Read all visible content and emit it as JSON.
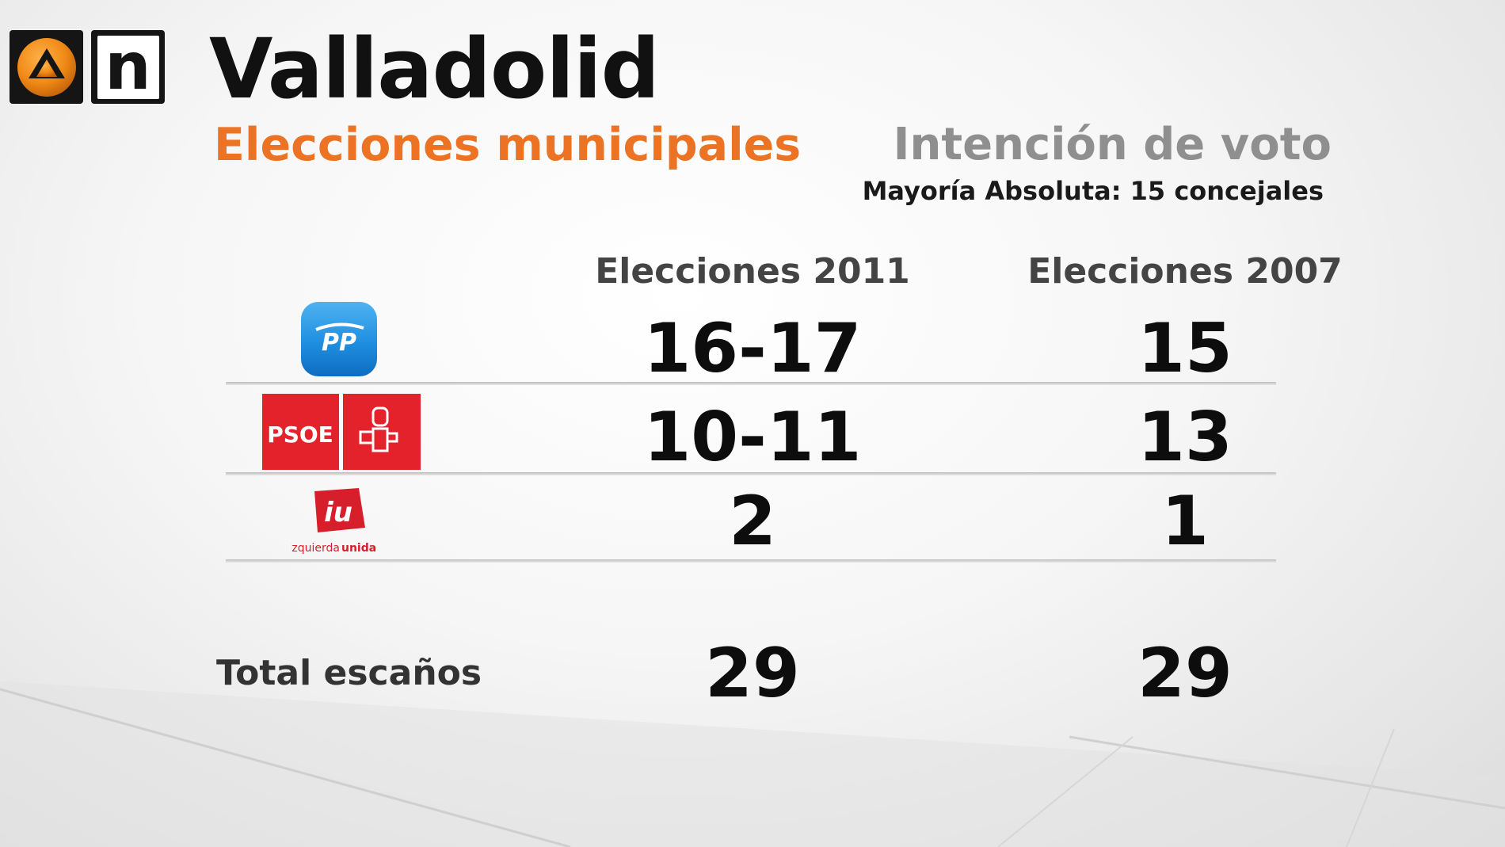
{
  "channel": {
    "logo_letter": "n",
    "logo_icon": "antena3-triangle-icon"
  },
  "header": {
    "title": "Valladolid",
    "subtitle": "Elecciones municipales",
    "section": "Intención de voto",
    "note": "Mayoría Absoluta: 15 concejales"
  },
  "table": {
    "columns": [
      "Elecciones 2011",
      "Elecciones 2007"
    ],
    "rows": [
      {
        "party": "PP",
        "logo_text": "PP",
        "values": [
          "16-17",
          "15"
        ]
      },
      {
        "party": "PSOE",
        "logo_text": "PSOE",
        "values": [
          "10-11",
          "13"
        ]
      },
      {
        "party": "Izquierda Unida",
        "logo_text": "iu",
        "logo_caption_a": "izquierda",
        "logo_caption_b": "unida",
        "values": [
          "2",
          "1"
        ]
      }
    ],
    "total": {
      "label": "Total escaños",
      "values": [
        "29",
        "29"
      ]
    }
  },
  "colors": {
    "accent": "#ec7323",
    "pp_blue": "#1f8fe0",
    "psoe_red": "#e3222b",
    "iu_red": "#d71f2b",
    "title": "#111111",
    "section_gray": "#8f8f8f"
  }
}
